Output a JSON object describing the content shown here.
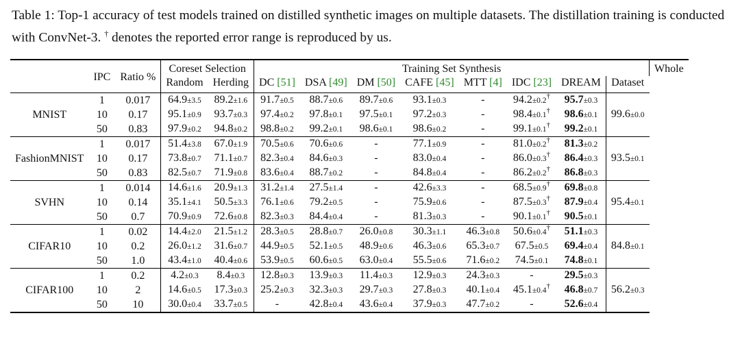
{
  "caption": {
    "text_before": "Table 1: Top-1 accuracy of test models trained on distilled synthetic images on multiple datasets. The distillation training is conducted with ConvNet-3. ",
    "dagger": "†",
    "text_after": " denotes the reported error range is reproduced by us."
  },
  "headers": {
    "ipc": "IPC",
    "ratio": "Ratio %",
    "coreset_group": "Coreset Selection",
    "synthesis_group": "Training Set Synthesis",
    "whole_line1": "Whole",
    "whole_line2": "Dataset",
    "random": "Random",
    "herding": "Herding",
    "dc": "DC",
    "dc_ref": "[51]",
    "dsa": "DSA",
    "dsa_ref": "[49]",
    "dm": "DM",
    "dm_ref": "[50]",
    "cafe": "CAFE",
    "cafe_ref": "[45]",
    "mtt": "MTT",
    "mtt_ref": "[4]",
    "idc": "IDC",
    "idc_ref": "[23]",
    "dream": "DREAM"
  },
  "datasets": [
    {
      "name": "MNIST",
      "whole": "99.6",
      "whole_pm": "±0.0",
      "rows": [
        {
          "ipc": "1",
          "ratio": "0.017",
          "random": [
            "64.9",
            "±3.5"
          ],
          "herding": [
            "89.2",
            "±1.6"
          ],
          "dc": [
            "91.7",
            "±0.5"
          ],
          "dsa": [
            "88.7",
            "±0.6"
          ],
          "dm": [
            "89.7",
            "±0.6"
          ],
          "cafe": [
            "93.1",
            "±0.3"
          ],
          "mtt": [
            "-",
            ""
          ],
          "idc": [
            "94.2",
            "±0.2"
          ],
          "idc_dagger": "†",
          "dream": [
            "95.7",
            "±0.3"
          ]
        },
        {
          "ipc": "10",
          "ratio": "0.17",
          "random": [
            "95.1",
            "±0.9"
          ],
          "herding": [
            "93.7",
            "±0.3"
          ],
          "dc": [
            "97.4",
            "±0.2"
          ],
          "dsa": [
            "97.8",
            "±0.1"
          ],
          "dm": [
            "97.5",
            "±0.1"
          ],
          "cafe": [
            "97.2",
            "±0.3"
          ],
          "mtt": [
            "-",
            ""
          ],
          "idc": [
            "98.4",
            "±0.1"
          ],
          "idc_dagger": "†",
          "dream": [
            "98.6",
            "±0.1"
          ]
        },
        {
          "ipc": "50",
          "ratio": "0.83",
          "random": [
            "97.9",
            "±0.2"
          ],
          "herding": [
            "94.8",
            "±0.2"
          ],
          "dc": [
            "98.8",
            "±0.2"
          ],
          "dsa": [
            "99.2",
            "±0.1"
          ],
          "dm": [
            "98.6",
            "±0.1"
          ],
          "cafe": [
            "98.6",
            "±0.2"
          ],
          "mtt": [
            "-",
            ""
          ],
          "idc": [
            "99.1",
            "±0.1"
          ],
          "idc_dagger": "†",
          "dream": [
            "99.2",
            "±0.1"
          ]
        }
      ]
    },
    {
      "name": "FashionMNIST",
      "whole": "93.5",
      "whole_pm": "±0.1",
      "rows": [
        {
          "ipc": "1",
          "ratio": "0.017",
          "random": [
            "51.4",
            "±3.8"
          ],
          "herding": [
            "67.0",
            "±1.9"
          ],
          "dc": [
            "70.5",
            "±0.6"
          ],
          "dsa": [
            "70.6",
            "±0.6"
          ],
          "dm": [
            "-",
            ""
          ],
          "cafe": [
            "77.1",
            "±0.9"
          ],
          "mtt": [
            "-",
            ""
          ],
          "idc": [
            "81.0",
            "±0.2"
          ],
          "idc_dagger": "†",
          "dream": [
            "81.3",
            "±0.2"
          ]
        },
        {
          "ipc": "10",
          "ratio": "0.17",
          "random": [
            "73.8",
            "±0.7"
          ],
          "herding": [
            "71.1",
            "±0.7"
          ],
          "dc": [
            "82.3",
            "±0.4"
          ],
          "dsa": [
            "84.6",
            "±0.3"
          ],
          "dm": [
            "-",
            ""
          ],
          "cafe": [
            "83.0",
            "±0.4"
          ],
          "mtt": [
            "-",
            ""
          ],
          "idc": [
            "86.0",
            "±0.3"
          ],
          "idc_dagger": "†",
          "dream": [
            "86.4",
            "±0.3"
          ]
        },
        {
          "ipc": "50",
          "ratio": "0.83",
          "random": [
            "82.5",
            "±0.7"
          ],
          "herding": [
            "71.9",
            "±0.8"
          ],
          "dc": [
            "83.6",
            "±0.4"
          ],
          "dsa": [
            "88.7",
            "±0.2"
          ],
          "dm": [
            "-",
            ""
          ],
          "cafe": [
            "84.8",
            "±0.4"
          ],
          "mtt": [
            "-",
            ""
          ],
          "idc": [
            "86.2",
            "±0.2"
          ],
          "idc_dagger": "†",
          "dream": [
            "86.8",
            "±0.3"
          ]
        }
      ]
    },
    {
      "name": "SVHN",
      "whole": "95.4",
      "whole_pm": "±0.1",
      "rows": [
        {
          "ipc": "1",
          "ratio": "0.014",
          "random": [
            "14.6",
            "±1.6"
          ],
          "herding": [
            "20.9",
            "±1.3"
          ],
          "dc": [
            "31.2",
            "±1.4"
          ],
          "dsa": [
            "27.5",
            "±1.4"
          ],
          "dm": [
            "-",
            ""
          ],
          "cafe": [
            "42.6",
            "±3.3"
          ],
          "mtt": [
            "-",
            ""
          ],
          "idc": [
            "68.5",
            "±0.9"
          ],
          "idc_dagger": "†",
          "dream": [
            "69.8",
            "±0.8"
          ]
        },
        {
          "ipc": "10",
          "ratio": "0.14",
          "random": [
            "35.1",
            "±4.1"
          ],
          "herding": [
            "50.5",
            "±3.3"
          ],
          "dc": [
            "76.1",
            "±0.6"
          ],
          "dsa": [
            "79.2",
            "±0.5"
          ],
          "dm": [
            "-",
            ""
          ],
          "cafe": [
            "75.9",
            "±0.6"
          ],
          "mtt": [
            "-",
            ""
          ],
          "idc": [
            "87.5",
            "±0.3"
          ],
          "idc_dagger": "†",
          "dream": [
            "87.9",
            "±0.4"
          ]
        },
        {
          "ipc": "50",
          "ratio": "0.7",
          "random": [
            "70.9",
            "±0.9"
          ],
          "herding": [
            "72.6",
            "±0.8"
          ],
          "dc": [
            "82.3",
            "±0.3"
          ],
          "dsa": [
            "84.4",
            "±0.4"
          ],
          "dm": [
            "-",
            ""
          ],
          "cafe": [
            "81.3",
            "±0.3"
          ],
          "mtt": [
            "-",
            ""
          ],
          "idc": [
            "90.1",
            "±0.1"
          ],
          "idc_dagger": "†",
          "dream": [
            "90.5",
            "±0.1"
          ]
        }
      ]
    },
    {
      "name": "CIFAR10",
      "whole": "84.8",
      "whole_pm": "±0.1",
      "rows": [
        {
          "ipc": "1",
          "ratio": "0.02",
          "random": [
            "14.4",
            "±2.0"
          ],
          "herding": [
            "21.5",
            "±1.2"
          ],
          "dc": [
            "28.3",
            "±0.5"
          ],
          "dsa": [
            "28.8",
            "±0.7"
          ],
          "dm": [
            "26.0",
            "±0.8"
          ],
          "cafe": [
            "30.3",
            "±1.1"
          ],
          "mtt": [
            "46.3",
            "±0.8"
          ],
          "idc": [
            "50.6",
            "±0.4"
          ],
          "idc_dagger": "†",
          "dream": [
            "51.1",
            "±0.3"
          ]
        },
        {
          "ipc": "10",
          "ratio": "0.2",
          "random": [
            "26.0",
            "±1.2"
          ],
          "herding": [
            "31.6",
            "±0.7"
          ],
          "dc": [
            "44.9",
            "±0.5"
          ],
          "dsa": [
            "52.1",
            "±0.5"
          ],
          "dm": [
            "48.9",
            "±0.6"
          ],
          "cafe": [
            "46.3",
            "±0.6"
          ],
          "mtt": [
            "65.3",
            "±0.7"
          ],
          "idc": [
            "67.5",
            "±0.5"
          ],
          "idc_dagger": "",
          "dream": [
            "69.4",
            "±0.4"
          ]
        },
        {
          "ipc": "50",
          "ratio": "1.0",
          "random": [
            "43.4",
            "±1.0"
          ],
          "herding": [
            "40.4",
            "±0.6"
          ],
          "dc": [
            "53.9",
            "±0.5"
          ],
          "dsa": [
            "60.6",
            "±0.5"
          ],
          "dm": [
            "63.0",
            "±0.4"
          ],
          "cafe": [
            "55.5",
            "±0.6"
          ],
          "mtt": [
            "71.6",
            "±0.2"
          ],
          "idc": [
            "74.5",
            "±0.1"
          ],
          "idc_dagger": "",
          "dream": [
            "74.8",
            "±0.1"
          ]
        }
      ]
    },
    {
      "name": "CIFAR100",
      "whole": "56.2",
      "whole_pm": "±0.3",
      "rows": [
        {
          "ipc": "1",
          "ratio": "0.2",
          "random": [
            "4.2",
            "±0.3"
          ],
          "herding": [
            "8.4",
            "±0.3"
          ],
          "dc": [
            "12.8",
            "±0.3"
          ],
          "dsa": [
            "13.9",
            "±0.3"
          ],
          "dm": [
            "11.4",
            "±0.3"
          ],
          "cafe": [
            "12.9",
            "±0.3"
          ],
          "mtt": [
            "24.3",
            "±0.3"
          ],
          "idc": [
            "-",
            ""
          ],
          "idc_dagger": "",
          "dream": [
            "29.5",
            "±0.3"
          ]
        },
        {
          "ipc": "10",
          "ratio": "2",
          "random": [
            "14.6",
            "±0.5"
          ],
          "herding": [
            "17.3",
            "±0.3"
          ],
          "dc": [
            "25.2",
            "±0.3"
          ],
          "dsa": [
            "32.3",
            "±0.3"
          ],
          "dm": [
            "29.7",
            "±0.3"
          ],
          "cafe": [
            "27.8",
            "±0.3"
          ],
          "mtt": [
            "40.1",
            "±0.4"
          ],
          "idc": [
            "45.1",
            "±0.4"
          ],
          "idc_dagger": "†",
          "dream": [
            "46.8",
            "±0.7"
          ]
        },
        {
          "ipc": "50",
          "ratio": "10",
          "random": [
            "30.0",
            "±0.4"
          ],
          "herding": [
            "33.7",
            "±0.5"
          ],
          "dc": [
            "-",
            ""
          ],
          "dsa": [
            "42.8",
            "±0.4"
          ],
          "dm": [
            "43.6",
            "±0.4"
          ],
          "cafe": [
            "37.9",
            "±0.3"
          ],
          "mtt": [
            "47.7",
            "±0.2"
          ],
          "idc": [
            "-",
            ""
          ],
          "idc_dagger": "",
          "dream": [
            "52.6",
            "±0.4"
          ]
        }
      ]
    }
  ]
}
